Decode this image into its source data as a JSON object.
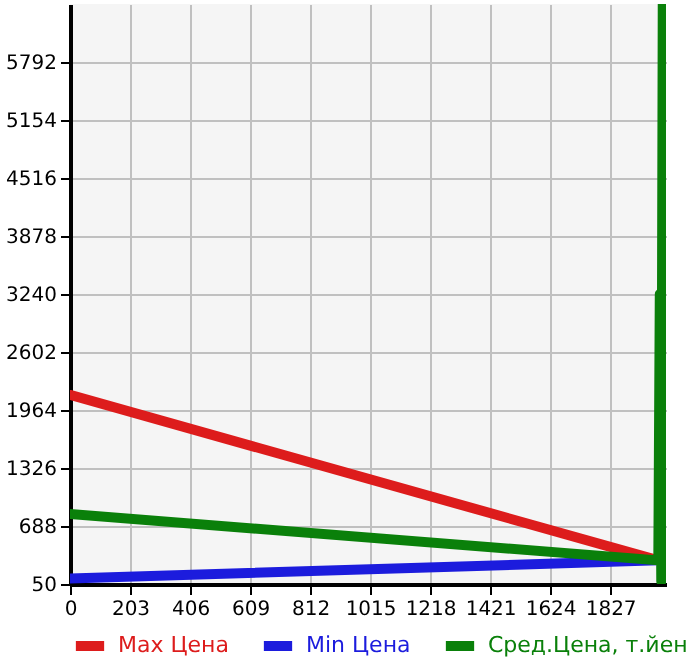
{
  "chart_data": {
    "type": "line",
    "xlim": [
      0,
      2016
    ],
    "ylim": [
      50,
      6430
    ],
    "xticks": [
      0,
      203,
      406,
      609,
      812,
      1015,
      1218,
      1421,
      1624,
      1827
    ],
    "yticks": [
      50,
      688,
      1326,
      1964,
      2602,
      3240,
      3878,
      4516,
      5154,
      5792
    ],
    "grid": true,
    "legend": "bottom",
    "marker": "none",
    "line_style": "solid",
    "series": [
      {
        "name": "Max Цена",
        "color": "#dd1c1c",
        "x": [
          0,
          1990
        ],
        "values": [
          2130,
          310
        ]
      },
      {
        "name": "Min Цена",
        "color": "#1c1cdd",
        "x": [
          0,
          1990
        ],
        "values": [
          110,
          310
        ]
      },
      {
        "name": "Сред.Цена, т.йен",
        "color": "#0a800a",
        "x": [
          0,
          1990,
          1995,
          2000,
          2005
        ],
        "values": [
          820,
          310,
          3240,
          80,
          6430
        ]
      }
    ]
  }
}
